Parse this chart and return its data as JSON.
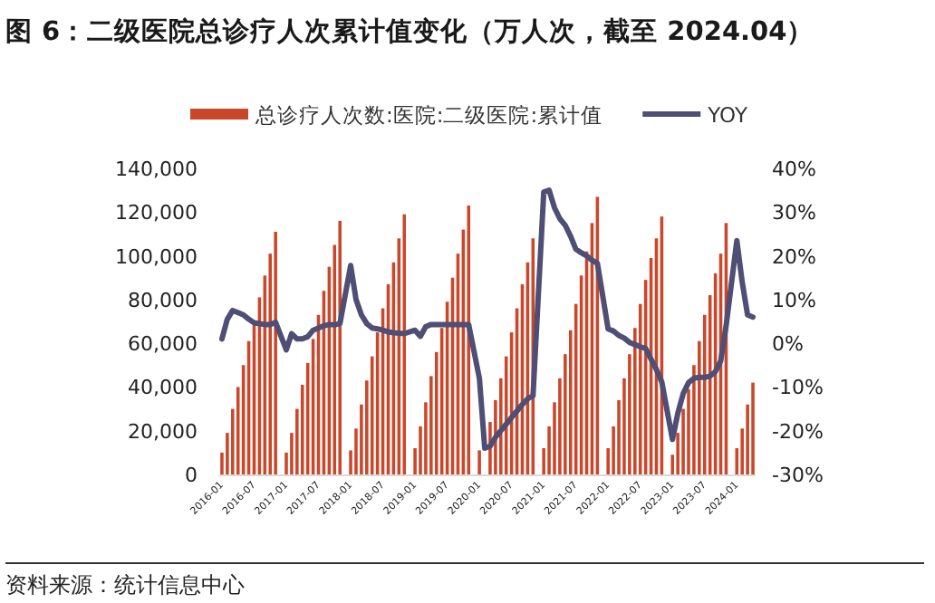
{
  "chart_data": {
    "type": "bar",
    "title": "图 6：二级医院总诊疗人次累计值变化（万人次，截至 2024.04）",
    "annotations": [
      "资料来源：统计信息中心"
    ],
    "categories": [
      "2016-01",
      null,
      null,
      null,
      null,
      null,
      "2016-07",
      null,
      null,
      null,
      null,
      null,
      "2017-01",
      null,
      null,
      null,
      null,
      null,
      "2017-07",
      null,
      null,
      null,
      null,
      null,
      "2018-01",
      null,
      null,
      null,
      null,
      null,
      "2018-07",
      null,
      null,
      null,
      null,
      null,
      "2019-01",
      null,
      null,
      null,
      null,
      null,
      "2019-07",
      null,
      null,
      null,
      null,
      null,
      "2020-01",
      null,
      null,
      null,
      null,
      null,
      "2020-07",
      null,
      null,
      null,
      null,
      null,
      "2021-01",
      null,
      null,
      null,
      null,
      null,
      "2021-07",
      null,
      null,
      null,
      null,
      null,
      "2022-01",
      null,
      null,
      null,
      null,
      null,
      "2022-07",
      null,
      null,
      null,
      null,
      null,
      "2023-01",
      null,
      null,
      null,
      null,
      null,
      "2023-07",
      null,
      null,
      null,
      null,
      null,
      "2024-01",
      null,
      null,
      null
    ],
    "series": [
      {
        "name": "总诊疗人次数:医院:二级医院:累计值",
        "color": "#c9472b",
        "values": [
          10000,
          19000,
          30000,
          40000,
          50000,
          61000,
          69000,
          81000,
          91000,
          101000,
          111000,
          null,
          10000,
          19000,
          30000,
          41000,
          51000,
          62000,
          73000,
          84000,
          95000,
          105000,
          116000,
          null,
          11000,
          21000,
          32000,
          43000,
          54000,
          65000,
          76000,
          87000,
          97000,
          108000,
          119000,
          null,
          12000,
          22000,
          33000,
          45000,
          56000,
          67000,
          79000,
          90000,
          101000,
          112000,
          123000,
          null,
          11000,
          null,
          24000,
          34000,
          44000,
          54000,
          65000,
          76000,
          87000,
          97000,
          108000,
          null,
          12000,
          22000,
          33000,
          44000,
          55000,
          66000,
          78000,
          91000,
          102000,
          115000,
          127000,
          null,
          12000,
          22000,
          34000,
          44000,
          55000,
          67000,
          78000,
          89000,
          99000,
          108000,
          118000,
          null,
          9000,
          19000,
          30000,
          39000,
          50000,
          61000,
          73000,
          82000,
          92000,
          101000,
          115000,
          null,
          12000,
          21000,
          32000,
          42000
        ]
      },
      {
        "name": "YOY",
        "type": "line",
        "axis": "y2",
        "color": "#4f4e74",
        "values": [
          1,
          5.5,
          7.5,
          7,
          6.5,
          5.5,
          4.7,
          4.5,
          4.3,
          4.3,
          4.8,
          null,
          -1.5,
          2.2,
          1,
          1,
          1.5,
          3,
          3.5,
          4,
          4.3,
          4.2,
          4.5,
          null,
          17.8,
          10,
          6.5,
          4.5,
          3.5,
          3.3,
          3,
          2.6,
          2.4,
          2.3,
          2.2,
          null,
          3,
          1.6,
          3.8,
          4.3,
          4.3,
          4.3,
          4.3,
          4.3,
          4.3,
          4.3,
          4.3,
          null,
          -8,
          -24,
          -23.5,
          -21.5,
          -20,
          -18.5,
          -17,
          -15.5,
          -14,
          -12.7,
          -12,
          null,
          34.6,
          35,
          31,
          28.5,
          27,
          24.5,
          21.5,
          20.7,
          20,
          19,
          18.3,
          null,
          3.3,
          2.8,
          1.8,
          1.2,
          0.2,
          -0.3,
          -0.8,
          -1.2,
          -3.6,
          -6,
          -8.8,
          null,
          -22,
          -16,
          -11.5,
          -9,
          -8,
          -7.8,
          -7.8,
          -7.5,
          -6.5,
          -4,
          4,
          null,
          23.5,
          14,
          6.5,
          6
        ]
      }
    ],
    "ylim": [
      0,
      140000
    ],
    "yticks": [
      {
        "value": 0,
        "label": "0"
      },
      {
        "value": 20000,
        "label": "20,000"
      },
      {
        "value": 40000,
        "label": "40,000"
      },
      {
        "value": 60000,
        "label": "60,000"
      },
      {
        "value": 80000,
        "label": "80,000"
      },
      {
        "value": 100000,
        "label": "100,000"
      },
      {
        "value": 120000,
        "label": "120,000"
      },
      {
        "value": 140000,
        "label": "140,000"
      }
    ],
    "y2lim": [
      -30,
      40
    ],
    "y2ticks": [
      {
        "value": -30,
        "label": "-30%"
      },
      {
        "value": -20,
        "label": "-20%"
      },
      {
        "value": -10,
        "label": "-10%"
      },
      {
        "value": 0,
        "label": "0%"
      },
      {
        "value": 10,
        "label": "10%"
      },
      {
        "value": 20,
        "label": "20%"
      },
      {
        "value": 30,
        "label": "30%"
      },
      {
        "value": 40,
        "label": "40%"
      }
    ],
    "legend": "top"
  }
}
